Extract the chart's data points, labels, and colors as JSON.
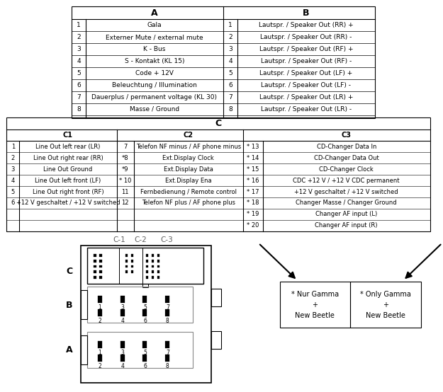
{
  "bg_color": "#ffffff",
  "table_a_header": "A",
  "table_b_header": "B",
  "table_a_rows": [
    [
      1,
      "Gala"
    ],
    [
      2,
      "Externer Mute / external mute"
    ],
    [
      3,
      "K - Bus"
    ],
    [
      4,
      "S - Kontakt (KL 15)"
    ],
    [
      5,
      "Code + 12V"
    ],
    [
      6,
      "Beleuchtung / Illumination"
    ],
    [
      7,
      "Dauerplus / permanent voltage (KL 30)"
    ],
    [
      8,
      "Masse / Ground"
    ]
  ],
  "table_b_rows": [
    [
      1,
      "Lautspr. / Speaker Out (RR) +"
    ],
    [
      2,
      "Lautspr. / Speaker Out (RR) -"
    ],
    [
      3,
      "Lautspr. / Speaker Out (RF) +"
    ],
    [
      4,
      "Lautspr. / Speaker Out (RF) -"
    ],
    [
      5,
      "Lautspr. / Speaker Out (LF) +"
    ],
    [
      6,
      "Lautspr. / Speaker Out (LF) -"
    ],
    [
      7,
      "Lautspr. / Speaker Out (LR) +"
    ],
    [
      8,
      "Lautspr. / Speaker Out (LR) -"
    ]
  ],
  "table_c_header": "C",
  "table_c1_header": "C1",
  "table_c2_header": "C2",
  "table_c3_header": "C3",
  "table_c1_rows": [
    [
      1,
      "Line Out left rear (LR)"
    ],
    [
      2,
      "Line Out right rear (RR)"
    ],
    [
      3,
      "Line Out Ground"
    ],
    [
      4,
      "Line Out left front (LF)"
    ],
    [
      5,
      "Line Out right front (RF)"
    ],
    [
      6,
      "+12 V geschaltet / +12 V switched"
    ]
  ],
  "table_c2_rows": [
    [
      7,
      "Telefon NF minus / AF phone minus"
    ],
    [
      "*8",
      "Ext.Display Clock"
    ],
    [
      "*9",
      "Ext.Display Data"
    ],
    [
      "* 10",
      "Ext.Display Ena"
    ],
    [
      11,
      "Fernbedienung / Remote control"
    ],
    [
      12,
      "Telefon NF plus / AF phone plus"
    ]
  ],
  "table_c3_rows": [
    [
      "* 13",
      "CD-Changer Data In"
    ],
    [
      "* 14",
      "CD-Changer Data Out"
    ],
    [
      "* 15",
      "CD-Changer Clock"
    ],
    [
      "* 16",
      "CDC +12 V / +12 V CDC permanent"
    ],
    [
      "* 17",
      "+12 V geschaltet / +12 V switched"
    ],
    [
      "* 18",
      "Changer Masse / Changer Ground"
    ],
    [
      "* 19",
      "Changer AF input (L)"
    ],
    [
      "* 20",
      "Changer AF input (R)"
    ]
  ],
  "note_left": "* Nur Gamma\n+\nNew Beetle",
  "note_right": "* Only Gamma\n+\nNew Beetle"
}
